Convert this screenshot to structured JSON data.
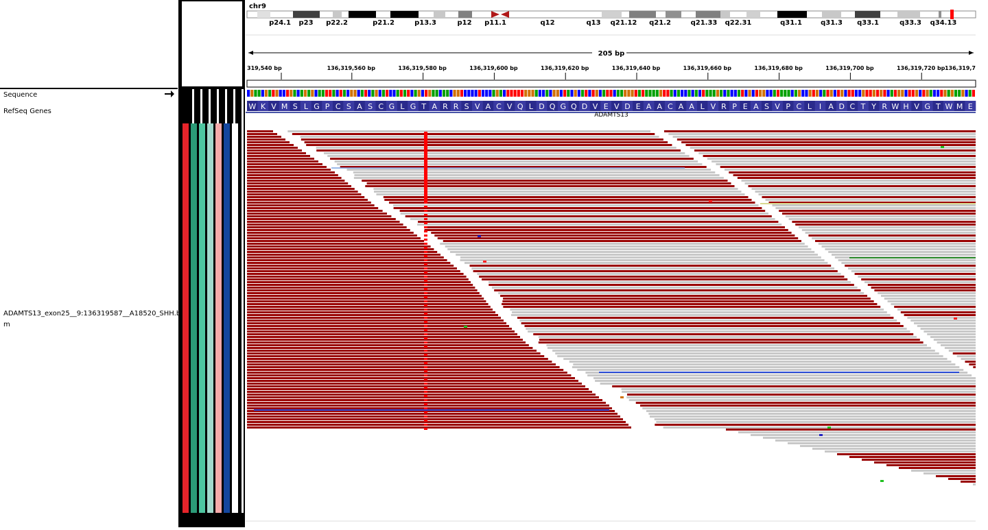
{
  "chromosome": "chr9",
  "ideogram": {
    "bands": [
      "p24.1",
      "p23",
      "p22.2",
      "p21.2",
      "p13.3",
      "p12",
      "p11.1",
      "q12",
      "q13",
      "q21.12",
      "q21.2",
      "q21.33",
      "q22.31",
      "q31.1",
      "q31.3",
      "q33.1",
      "q33.3",
      "q34.13"
    ]
  },
  "ruler": {
    "span": "205 bp",
    "ticks": [
      "319,540 bp",
      "136,319,560 bp",
      "136,319,580 bp",
      "136,319,600 bp",
      "136,319,620 bp",
      "136,319,640 bp",
      "136,319,660 bp",
      "136,319,680 bp",
      "136,319,700 bp",
      "136,319,720 bp",
      "136,319,7"
    ]
  },
  "tracks": {
    "sequence": "Sequence",
    "refseq": "RefSeq Genes",
    "alignment_line1": "ADAMTS13_exon25__9:136319587__A18520_SHH.b",
    "alignment_line2": "m"
  },
  "gene": {
    "name": "ADAMTS13",
    "amino_acids": "WKVMSLGPCSASCGLGTARRSVACVQLDQGQDVEVDEAACAALVRPEASVPCLIADCTYRWHVGTWME"
  },
  "colors": {
    "read_mismatch": "#990000",
    "read_normal": "#c8c8c8",
    "variant_marker": "#ff0000",
    "insert_blue": "#2a4cd8",
    "attribute_colors": [
      "#e6242a",
      "#2b9b77",
      "#4ec5a0",
      "#a2d9cd",
      "#f6aaaa",
      "#14469e",
      "#ffffff"
    ]
  }
}
